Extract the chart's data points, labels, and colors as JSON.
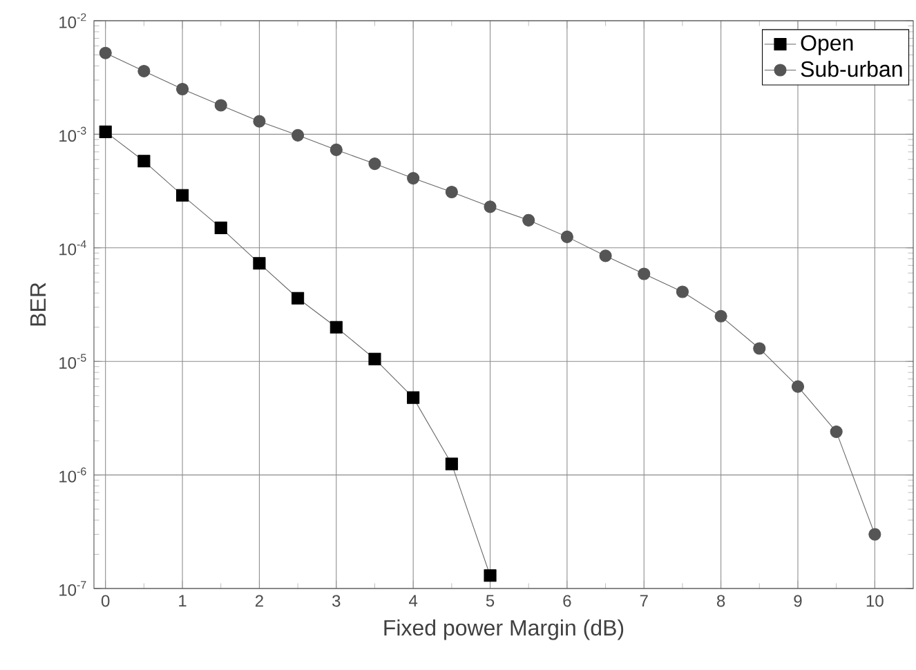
{
  "chart_data": {
    "type": "line",
    "xlabel": "Fixed power Margin (dB)",
    "ylabel": "BER",
    "x": [
      0,
      0.5,
      1,
      1.5,
      2,
      2.5,
      3,
      3.5,
      4,
      4.5,
      5,
      5.5,
      6,
      6.5,
      7,
      7.5,
      8,
      8.5,
      9,
      9.5,
      10
    ],
    "series": [
      {
        "name": "Open",
        "color": "#000000",
        "marker": "square",
        "x": [
          0,
          0.5,
          1,
          1.5,
          2,
          2.5,
          3,
          3.5,
          4,
          4.5,
          5
        ],
        "values": [
          0.00105,
          0.00058,
          0.00029,
          0.00015,
          7.3e-05,
          3.6e-05,
          2e-05,
          1.05e-05,
          4.8e-06,
          1.25e-06,
          1.3e-07
        ]
      },
      {
        "name": "Sub-urban",
        "color": "#555555",
        "marker": "circle",
        "values": [
          0.0052,
          0.0036,
          0.0025,
          0.0018,
          0.0013,
          0.00098,
          0.00073,
          0.00055,
          0.00041,
          0.00031,
          0.00023,
          0.000175,
          0.000125,
          8.5e-05,
          5.9e-05,
          4.1e-05,
          2.5e-05,
          1.3e-05,
          6e-06,
          2.4e-06,
          3e-07
        ]
      }
    ],
    "log": "y",
    "xlim": [
      -0.15,
      10.5
    ],
    "ylim": [
      1e-07,
      0.01
    ],
    "xticks": [
      0,
      1,
      2,
      3,
      4,
      5,
      6,
      7,
      8,
      9,
      10
    ],
    "yticks": [
      {
        "value": 1e-07,
        "label": "10$^{-7}$"
      },
      {
        "value": 1e-06,
        "label": "10$^{-6}$"
      },
      {
        "value": 1e-05,
        "label": "10$^{-5}$"
      },
      {
        "value": 0.0001,
        "label": "10$^{-4}$"
      },
      {
        "value": 0.001,
        "label": "10$^{-3}$"
      },
      {
        "value": 0.01,
        "label": "10$^{-2}$"
      }
    ],
    "grid": true,
    "legend": "top right",
    "line_style": "solid"
  }
}
